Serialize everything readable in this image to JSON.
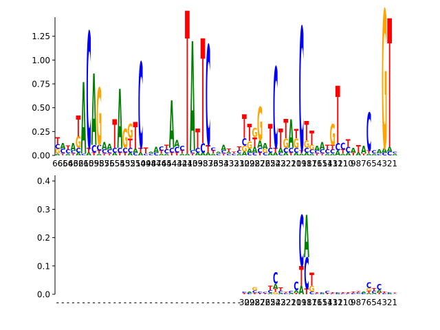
{
  "colors": {
    "A": "#008000",
    "C": "#0000ff",
    "G": "#ffa500",
    "T": "#ff0000",
    "axis": "#000000",
    "background": "#ffffff"
  },
  "chart_data": [
    {
      "type": "sequence-logo",
      "title": "",
      "xlabel": "",
      "ylabel": "",
      "ylim": [
        0,
        1.45
      ],
      "yticks": [
        0.0,
        0.25,
        0.5,
        0.75,
        1.0,
        1.25
      ],
      "ytick_labels": [
        "0.00",
        "0.25",
        "0.50",
        "0.75",
        "1.00",
        "1.25"
      ],
      "x_tick_labels": [
        "66",
        "65",
        "64",
        "63",
        "62",
        "61",
        "60",
        "59",
        "58",
        "57",
        "56",
        "55",
        "54",
        "53",
        "52",
        "51",
        "50",
        "49",
        "48",
        "47",
        "46",
        "45",
        "44",
        "43",
        "42",
        "41",
        "40",
        "39",
        "38",
        "37",
        "36",
        "35",
        "34",
        "33",
        "32",
        "31",
        "30",
        "29",
        "28",
        "27",
        "26",
        "25",
        "24",
        "23",
        "22",
        "21",
        "20",
        "19",
        "18",
        "17",
        "16",
        "15",
        "14",
        "13",
        "12",
        "11",
        "10",
        "9",
        "8",
        "7",
        "6",
        "5",
        "4",
        "3",
        "2",
        "1"
      ],
      "positions": [
        {
          "T": 0.07,
          "G": 0.05,
          "C": 0.05,
          "A": 0.02
        },
        {
          "A": 0.06,
          "C": 0.05,
          "T": 0.02
        },
        {
          "C": 0.04,
          "T": 0.04,
          "A": 0.02
        },
        {
          "A": 0.08,
          "C": 0.03,
          "T": 0.02
        },
        {
          "T": 0.22,
          "G": 0.12,
          "C": 0.05,
          "A": 0.03
        },
        {
          "A": 0.75,
          "C": 0.02
        },
        {
          "C": 1.22,
          "T": 0.05,
          "A": 0.03
        },
        {
          "A": 0.75,
          "C": 0.08,
          "T": 0.03
        },
        {
          "G": 0.6,
          "C": 0.06,
          "T": 0.03,
          "A": 0.02
        },
        {
          "A": 0.08,
          "C": 0.04,
          "T": 0.02
        },
        {
          "A": 0.06,
          "C": 0.04,
          "T": 0.02
        },
        {
          "T": 0.3,
          "C": 0.05,
          "A": 0.03
        },
        {
          "A": 0.62,
          "C": 0.05,
          "T": 0.03
        },
        {
          "G": 0.2,
          "C": 0.05,
          "T": 0.03
        },
        {
          "G": 0.15,
          "T": 0.1,
          "C": 0.05,
          "A": 0.03
        },
        {
          "T": 0.28,
          "A": 0.04,
          "C": 0.03
        },
        {
          "C": 0.9,
          "T": 0.05,
          "A": 0.03
        },
        {
          "T": 0.06,
          "C": 0.02
        },
        {
          "C": 0.02,
          "A": 0.02
        },
        {
          "A": 0.06,
          "C": 0.03
        },
        {
          "C": 0.04,
          "T": 0.03,
          "A": 0.02
        },
        {
          "T": 0.05,
          "C": 0.04,
          "A": 0.02
        },
        {
          "A": 0.5,
          "C": 0.05,
          "T": 0.03
        },
        {
          "A": 0.07,
          "C": 0.06,
          "T": 0.03
        },
        {
          "C": 0.05,
          "T": 0.03,
          "A": 0.02
        },
        {
          "T": 1.5,
          "A": 0.02
        },
        {
          "A": 1.15,
          "C": 0.03,
          "T": 0.02
        },
        {
          "T": 0.2,
          "C": 0.05,
          "A": 0.03
        },
        {
          "T": 1.1,
          "C": 0.1,
          "A": 0.03
        },
        {
          "C": 1.05,
          "T": 0.08,
          "A": 0.03
        },
        {
          "T": 0.03,
          "C": 0.03,
          "A": 0.02
        },
        {
          "C": 0.02,
          "A": 0.02
        },
        {
          "A": 0.06,
          "C": 0.03,
          "T": 0.02
        },
        {
          "T": 0.03,
          "C": 0.02,
          "A": 0.02
        },
        {
          "C": 0.02,
          "T": 0.02
        },
        {
          "T": 0.04,
          "C": 0.03,
          "A": 0.02
        },
        {
          "T": 0.25,
          "C": 0.08,
          "G": 0.06,
          "A": 0.04
        },
        {
          "T": 0.18,
          "G": 0.08,
          "A": 0.04,
          "C": 0.03
        },
        {
          "T": 0.1,
          "G": 0.1,
          "A": 0.06,
          "C": 0.03
        },
        {
          "G": 0.35,
          "A": 0.08,
          "C": 0.05,
          "T": 0.03
        },
        {
          "A": 0.06,
          "G": 0.04,
          "C": 0.03
        },
        {
          "T": 0.25,
          "C": 0.05,
          "A": 0.03
        },
        {
          "C": 0.85,
          "T": 0.05,
          "A": 0.03
        },
        {
          "T": 0.2,
          "A": 0.05,
          "C": 0.03
        },
        {
          "T": 0.2,
          "G": 0.1,
          "C": 0.05,
          "A": 0.03
        },
        {
          "A": 0.3,
          "C": 0.05,
          "T": 0.03
        },
        {
          "G": 0.1,
          "T": 0.1,
          "C": 0.05,
          "A": 0.03
        },
        {
          "C": 1.3,
          "T": 0.03,
          "A": 0.02
        },
        {
          "T": 0.2,
          "G": 0.08,
          "C": 0.05,
          "A": 0.03
        },
        {
          "T": 0.15,
          "G": 0.05,
          "C": 0.04,
          "A": 0.02
        },
        {
          "A": 0.05,
          "C": 0.03,
          "T": 0.02
        },
        {
          "A": 0.08,
          "C": 0.04,
          "T": 0.02
        },
        {
          "T": 0.05,
          "C": 0.04,
          "A": 0.02
        },
        {
          "G": 0.22,
          "T": 0.05,
          "C": 0.04,
          "A": 0.02
        },
        {
          "T": 0.6,
          "C": 0.08,
          "A": 0.05
        },
        {
          "C": 0.07,
          "T": 0.04,
          "A": 0.02
        },
        {
          "T": 0.08,
          "C": 0.06,
          "A": 0.03
        },
        {
          "A": 0.05,
          "T": 0.03
        },
        {
          "T": 0.08,
          "A": 0.03
        },
        {
          "A": 0.08,
          "T": 0.02
        },
        {
          "C": 0.4,
          "T": 0.03,
          "A": 0.02
        },
        {
          "C": 0.03,
          "A": 0.02
        },
        {
          "A": 0.04,
          "C": 0.02
        },
        {
          "G": 1.45,
          "A": 0.05,
          "C": 0.03
        },
        {
          "T": 1.35,
          "A": 0.05,
          "C": 0.04
        },
        {
          "A": 0.02,
          "C": 0.02
        }
      ]
    },
    {
      "type": "sequence-logo",
      "title": "",
      "xlabel": "",
      "ylabel": "",
      "ylim": [
        0,
        0.42
      ],
      "yticks": [
        0.0,
        0.1,
        0.2,
        0.3,
        0.4
      ],
      "ytick_labels": [
        "0.0",
        "0.1",
        "0.2",
        "0.3",
        "0.4"
      ],
      "x_tick_labels": [
        "-",
        "-",
        "-",
        "-",
        "-",
        "-",
        "-",
        "-",
        "-",
        "-",
        "-",
        "-",
        "-",
        "-",
        "-",
        "-",
        "-",
        "-",
        "-",
        "-",
        "-",
        "-",
        "-",
        "-",
        "-",
        "-",
        "-",
        "-",
        "-",
        "-",
        "-",
        "-",
        "-",
        "-",
        "-",
        "-",
        "30",
        "29",
        "28",
        "27",
        "26",
        "25",
        "24",
        "23",
        "22",
        "21",
        "20",
        "19",
        "18",
        "17",
        "16",
        "15",
        "14",
        "13",
        "12",
        "11",
        "10",
        "9",
        "8",
        "7",
        "6",
        "5",
        "4",
        "3",
        "2",
        "1"
      ],
      "positions": [
        {},
        {},
        {},
        {},
        {},
        {},
        {},
        {},
        {},
        {},
        {},
        {},
        {},
        {},
        {},
        {},
        {},
        {},
        {},
        {},
        {},
        {},
        {},
        {},
        {},
        {},
        {},
        {},
        {},
        {},
        {},
        {},
        {},
        {},
        {},
        {},
        {
          "T": 0.005,
          "C": 0.005
        },
        {
          "A": 0.006,
          "C": 0.004
        },
        {
          "G": 0.012,
          "C": 0.008,
          "T": 0.005
        },
        {
          "C": 0.006,
          "T": 0.004
        },
        {
          "T": 0.004,
          "C": 0.004
        },
        {
          "T": 0.015,
          "C": 0.01,
          "A": 0.005
        },
        {
          "C": 0.04,
          "A": 0.018,
          "T": 0.012,
          "G": 0.008
        },
        {
          "T": 0.012,
          "C": 0.008,
          "A": 0.004
        },
        {
          "T": 0.005,
          "C": 0.004
        },
        {
          "C": 0.008,
          "A": 0.004
        },
        {
          "C": 0.03,
          "A": 0.01,
          "T": 0.005
        },
        {
          "C": 0.18,
          "T": 0.07,
          "A": 0.03
        },
        {
          "T": 0.02,
          "A": 0.15,
          "C": 0.11
        },
        {
          "T": 0.045,
          "G": 0.02,
          "C": 0.01
        },
        {
          "T": 0.005,
          "C": 0.003
        },
        {
          "C": 0.004,
          "A": 0.003
        },
        {
          "C": 0.008,
          "T": 0.004
        },
        {
          "T": 0.005,
          "C": 0.003
        },
        {
          "C": 0.004,
          "A": 0.003
        },
        {
          "T": 0.004,
          "C": 0.003
        },
        {
          "T": 0.004,
          "C": 0.003
        },
        {
          "T": 0.006,
          "C": 0.004
        },
        {
          "T": 0.005,
          "C": 0.004,
          "A": 0.002
        },
        {
          "A": 0.006,
          "C": 0.004
        },
        {
          "C": 0.02,
          "G": 0.01,
          "T": 0.008,
          "A": 0.004
        },
        {
          "T": 0.01,
          "C": 0.008,
          "A": 0.004
        },
        {
          "C": 0.02,
          "A": 0.01,
          "T": 0.006
        },
        {
          "T": 0.006,
          "C": 0.004
        },
        {
          "C": 0.004,
          "A": 0.003
        },
        {
          "T": 0.003,
          "C": 0.002
        }
      ]
    }
  ]
}
